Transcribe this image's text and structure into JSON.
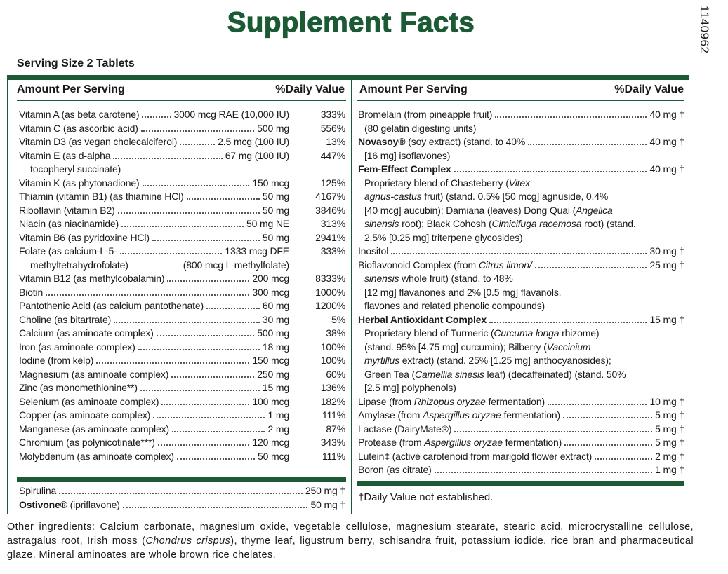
{
  "title": "Supplement Facts",
  "product_code": "1140962",
  "serving_size": "Serving Size 2 Tablets",
  "left": {
    "header": {
      "amount": "Amount Per Serving",
      "dv": "%Daily Value"
    },
    "rows": [
      {
        "lines": [
          [
            "Vitamin A (as beta carotene)"
          ]
        ],
        "amount": [
          "3000 mcg RAE  (10,000 IU)"
        ],
        "dv": "333%"
      },
      {
        "lines": [
          [
            "Vitamin C (as ascorbic acid)"
          ]
        ],
        "amount": [
          "500 mg"
        ],
        "dv": "556%"
      },
      {
        "lines": [
          [
            "Vitamin D3 (as vegan cholecalciferol)"
          ]
        ],
        "amount": [
          "2.5 mcg (100 IU)"
        ],
        "dv": "13%"
      },
      {
        "lines": [
          [
            "Vitamin E (as d-alpha"
          ],
          [
            "tocopheryl succinate)"
          ]
        ],
        "amount": [
          "67 mg (100 IU)"
        ],
        "dv": "447%"
      },
      {
        "lines": [
          [
            "Vitamin K (as phytonadione)"
          ]
        ],
        "amount": [
          "150 mcg"
        ],
        "dv": "125%"
      },
      {
        "lines": [
          [
            "Thiamin (vitamin B1) (as thiamine HCl)"
          ]
        ],
        "amount": [
          "50 mg"
        ],
        "dv": "4167%"
      },
      {
        "lines": [
          [
            "Riboflavin (vitamin B2)"
          ]
        ],
        "amount": [
          "50 mg"
        ],
        "dv": "3846%"
      },
      {
        "lines": [
          [
            "Niacin (as niacinamide)"
          ]
        ],
        "amount": [
          "50 mg NE"
        ],
        "dv": "313%"
      },
      {
        "lines": [
          [
            "Vitamin B6 (as pyridoxine HCl)"
          ]
        ],
        "amount": [
          "50 mg"
        ],
        "dv": "2941%"
      },
      {
        "lines": [
          [
            "Folate (as calcium-L-5-"
          ],
          [
            "methyltetrahydrofolate)"
          ]
        ],
        "amount": [
          "1333 mcg DFE",
          "(800 mcg L-methylfolate)"
        ],
        "dv": "333%"
      },
      {
        "lines": [
          [
            "Vitamin B12 (as methylcobalamin)"
          ]
        ],
        "amount": [
          "200 mcg"
        ],
        "dv": "8333%"
      },
      {
        "lines": [
          [
            "Biotin"
          ]
        ],
        "amount": [
          "300 mcg"
        ],
        "dv": "1000%"
      },
      {
        "lines": [
          [
            "Pantothenic Acid (as calcium pantothenate)"
          ]
        ],
        "amount": [
          "60 mg"
        ],
        "dv": "1200%"
      },
      {
        "lines": [
          [
            "Choline (as bitartrate)"
          ]
        ],
        "amount": [
          "30 mg"
        ],
        "dv": "5%"
      },
      {
        "lines": [
          [
            "Calcium (as aminoate complex)"
          ]
        ],
        "amount": [
          "500 mg"
        ],
        "dv": "38%"
      },
      {
        "lines": [
          [
            "Iron (as aminoate complex)"
          ]
        ],
        "amount": [
          "18 mg"
        ],
        "dv": "100%"
      },
      {
        "lines": [
          [
            "Iodine (from kelp)"
          ]
        ],
        "amount": [
          "150 mcg"
        ],
        "dv": "100%"
      },
      {
        "lines": [
          [
            "Magnesium (as aminoate complex)"
          ]
        ],
        "amount": [
          "250 mg"
        ],
        "dv": "60%"
      },
      {
        "lines": [
          [
            "Zinc (as monomethionine**)"
          ]
        ],
        "amount": [
          "15 mg"
        ],
        "dv": "136%"
      },
      {
        "lines": [
          [
            "Selenium (as aminoate complex)"
          ]
        ],
        "amount": [
          "100 mcg"
        ],
        "dv": "182%"
      },
      {
        "lines": [
          [
            "Copper (as aminoate complex)"
          ]
        ],
        "amount": [
          "1 mg"
        ],
        "dv": "111%"
      },
      {
        "lines": [
          [
            "Manganese (as aminoate complex)"
          ]
        ],
        "amount": [
          "2 mg"
        ],
        "dv": "87%"
      },
      {
        "lines": [
          [
            "Chromium (as polynicotinate***)"
          ]
        ],
        "amount": [
          "120 mcg"
        ],
        "dv": "343%"
      },
      {
        "lines": [
          [
            "Molybdenum (as aminoate complex)"
          ]
        ],
        "amount": [
          "50 mcg"
        ],
        "dv": "111%"
      }
    ],
    "extra_rows": [
      {
        "lines": [
          [
            "Spirulina"
          ]
        ],
        "amount": [
          "250 mg †"
        ]
      },
      {
        "lines": [
          [
            {
              "bold": "Ostivone®"
            },
            " (ipriflavone)"
          ]
        ],
        "amount": [
          "50 mg †"
        ]
      }
    ]
  },
  "right": {
    "header": {
      "amount": "Amount Per Serving",
      "dv": "%Daily Value"
    },
    "rows": [
      {
        "lines": [
          [
            "Bromelain (from pineapple fruit)"
          ],
          [
            "(80 gelatin digesting units)"
          ]
        ],
        "amount": [
          "40 mg †"
        ]
      },
      {
        "lines": [
          [
            {
              "bold": "Novasoy®"
            },
            " (soy extract) (stand. to 40%"
          ],
          [
            "[16 mg] isoflavones)"
          ]
        ],
        "amount": [
          "40 mg †"
        ]
      },
      {
        "lines": [
          [
            {
              "bold": "Fem-Effect Complex"
            }
          ],
          [
            "Proprietary blend of Chasteberry (",
            {
              "italic": "Vitex"
            }
          ],
          [
            {
              "italic": "agnus-castus"
            },
            " fruit) (stand. 0.5% [50 mcg] agnuside, 0.4%"
          ],
          [
            "[40 mcg] aucubin); Damiana (leaves) Dong Quai (",
            {
              "italic": "Angelica"
            }
          ],
          [
            {
              "italic": "sinensis"
            },
            " root); Black Cohosh (",
            {
              "italic": "Cimicifuga racemosa"
            },
            " root) (stand."
          ],
          [
            "2.5% [0.25 mg] triterpene glycosides)"
          ]
        ],
        "amount": [
          "40 mg †"
        ]
      },
      {
        "lines": [
          [
            "Inositol"
          ]
        ],
        "amount": [
          "30 mg †"
        ]
      },
      {
        "lines": [
          [
            "Bioflavonoid Complex (from ",
            {
              "italic": "Citrus limon/"
            }
          ],
          [
            {
              "italic": "sinensis"
            },
            " whole fruit) (stand. to 48%"
          ],
          [
            "[12 mg] flavanones and 2% [0.5 mg] flavanols,"
          ],
          [
            "flavones and related phenolic compounds)"
          ]
        ],
        "amount": [
          "25 mg †"
        ]
      },
      {
        "lines": [
          [
            {
              "bold": "Herbal Antioxidant Complex"
            }
          ],
          [
            "Proprietary blend of Turmeric (",
            {
              "italic": "Curcuma longa"
            },
            " rhizome)"
          ],
          [
            "(stand. 95% [4.75 mg] curcumin); Bilberry (",
            {
              "italic": "Vaccinium"
            }
          ],
          [
            {
              "italic": "myrtillus"
            },
            " extract) (stand. 25% [1.25 mg] anthocyanosides);"
          ],
          [
            "Green Tea (",
            {
              "italic": "Camellia sinesis"
            },
            " leaf) (decaffeinated) (stand. 50%"
          ],
          [
            "[2.5 mg] polyphenols)"
          ]
        ],
        "amount": [
          "15 mg †"
        ]
      },
      {
        "lines": [
          [
            "Lipase (from ",
            {
              "italic": "Rhizopus oryzae"
            },
            " fermentation)"
          ]
        ],
        "amount": [
          "10 mg †"
        ]
      },
      {
        "lines": [
          [
            "Amylase (from ",
            {
              "italic": "Aspergillus oryzae"
            },
            " fermentation)"
          ]
        ],
        "amount": [
          "5 mg †"
        ]
      },
      {
        "lines": [
          [
            "Lactase (DairyMate®)"
          ]
        ],
        "amount": [
          "5 mg †"
        ]
      },
      {
        "lines": [
          [
            "Protease (from ",
            {
              "italic": "Aspergillus oryzae"
            },
            " fermentation)"
          ]
        ],
        "amount": [
          "5 mg †"
        ]
      },
      {
        "lines": [
          [
            "Lutein‡ (active carotenoid from marigold flower extract)"
          ]
        ],
        "amount": [
          "2 mg †"
        ]
      },
      {
        "lines": [
          [
            "Boron (as citrate)"
          ]
        ],
        "amount": [
          "1 mg †"
        ]
      }
    ],
    "footnote": "†Daily Value not established."
  },
  "other_ingredients": [
    "Other ingredients: Calcium carbonate, magnesium oxide, vegetable cellulose, magnesium stearate, stearic acid, microcrystalline cellulose, astragalus root, Irish moss (",
    {
      "italic": "Chondrus crispus"
    },
    "), thyme leaf, ligustrum berry, schisandra fruit, potassium iodide, rice bran and pharmaceutical glaze. Mineral aminoates are whole brown rice chelates."
  ]
}
